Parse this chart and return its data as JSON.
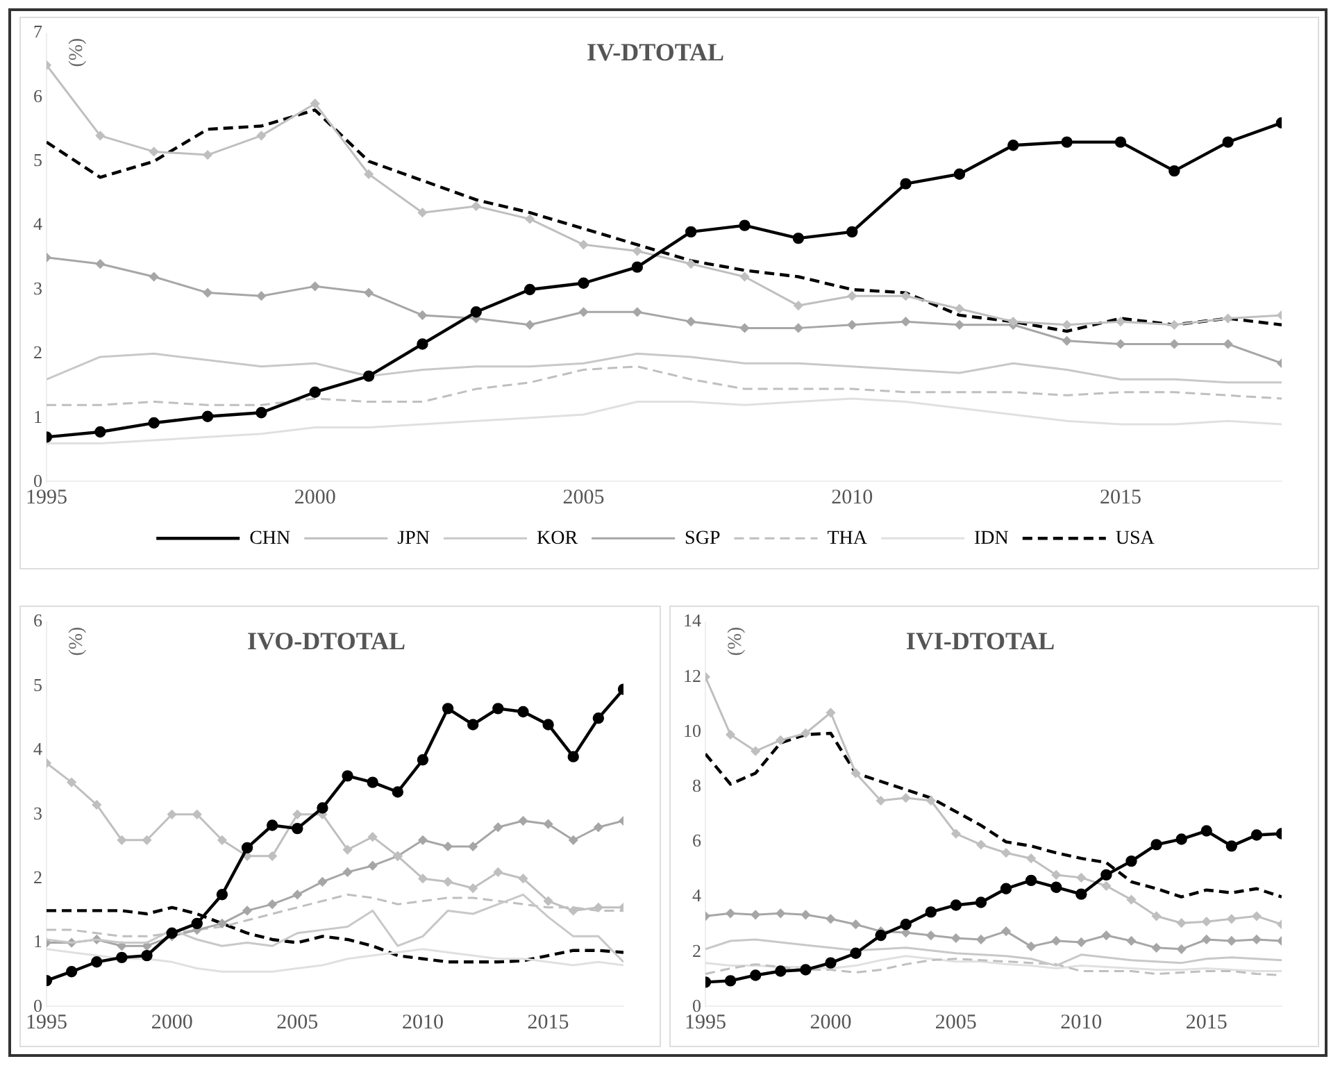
{
  "chart_data": [
    {
      "type": "line",
      "title": "IV-DTOTAL",
      "ylabel": "(%)",
      "legend": "bottom",
      "grid": false,
      "x": [
        1995,
        1996,
        1997,
        1998,
        1999,
        2000,
        2001,
        2002,
        2003,
        2004,
        2005,
        2006,
        2007,
        2008,
        2009,
        2010,
        2011,
        2012,
        2013,
        2014,
        2015,
        2016,
        2017,
        2018
      ],
      "xlim": [
        1995,
        2018
      ],
      "xticks": [
        1995,
        2000,
        2005,
        2010,
        2015
      ],
      "ylim": [
        0,
        7
      ],
      "yticks": [
        0,
        1,
        2,
        3,
        4,
        5,
        6,
        7
      ],
      "series": [
        {
          "name": "CHN",
          "color": "#000000",
          "marker": "circle",
          "line_style": "solid",
          "values": [
            0.7,
            0.78,
            0.92,
            1.02,
            1.08,
            1.4,
            1.65,
            2.15,
            2.65,
            3.0,
            3.1,
            3.35,
            3.9,
            4.0,
            3.8,
            3.9,
            4.65,
            4.8,
            5.25,
            5.3,
            5.3,
            4.85,
            5.3,
            5.6
          ]
        },
        {
          "name": "JPN",
          "color": "#bfbfbf",
          "marker": "diamond",
          "line_style": "solid",
          "values": [
            6.5,
            5.4,
            5.15,
            5.1,
            5.4,
            5.9,
            4.8,
            4.2,
            4.3,
            4.1,
            3.7,
            3.6,
            3.4,
            3.2,
            2.75,
            2.9,
            2.9,
            2.7,
            2.5,
            2.45,
            2.5,
            2.45,
            2.55,
            2.6
          ]
        },
        {
          "name": "KOR",
          "color": "#c8c8c8",
          "marker": "none",
          "line_style": "solid",
          "values": [
            1.6,
            1.95,
            2.0,
            1.9,
            1.8,
            1.85,
            1.65,
            1.75,
            1.8,
            1.8,
            1.85,
            2.0,
            1.95,
            1.85,
            1.85,
            1.8,
            1.75,
            1.7,
            1.85,
            1.75,
            1.6,
            1.6,
            1.55,
            1.55
          ]
        },
        {
          "name": "SGP",
          "color": "#a6a6a6",
          "marker": "diamond",
          "line_style": "solid",
          "values": [
            3.5,
            3.4,
            3.2,
            2.95,
            2.9,
            3.05,
            2.95,
            2.6,
            2.55,
            2.45,
            2.65,
            2.65,
            2.5,
            2.4,
            2.4,
            2.45,
            2.5,
            2.45,
            2.45,
            2.2,
            2.15,
            2.15,
            2.15,
            1.85
          ]
        },
        {
          "name": "THA",
          "color": "#bfbfbf",
          "marker": "none",
          "line_style": "dashed",
          "values": [
            1.2,
            1.2,
            1.25,
            1.2,
            1.2,
            1.3,
            1.25,
            1.25,
            1.45,
            1.55,
            1.75,
            1.8,
            1.6,
            1.45,
            1.45,
            1.45,
            1.4,
            1.4,
            1.4,
            1.35,
            1.4,
            1.4,
            1.35,
            1.3
          ]
        },
        {
          "name": "IDN",
          "color": "#e0e0e0",
          "marker": "none",
          "line_style": "solid",
          "values": [
            0.6,
            0.6,
            0.65,
            0.7,
            0.75,
            0.85,
            0.85,
            0.9,
            0.95,
            1.0,
            1.05,
            1.25,
            1.25,
            1.2,
            1.25,
            1.3,
            1.25,
            1.15,
            1.05,
            0.95,
            0.9,
            0.9,
            0.95,
            0.9
          ]
        },
        {
          "name": "USA",
          "color": "#000000",
          "marker": "none",
          "line_style": "dashed",
          "values": [
            5.3,
            4.75,
            5.0,
            5.5,
            5.55,
            5.8,
            5.0,
            4.7,
            4.4,
            4.2,
            3.95,
            3.7,
            3.45,
            3.3,
            3.2,
            3.0,
            2.95,
            2.6,
            2.5,
            2.35,
            2.55,
            2.45,
            2.55,
            2.45
          ]
        }
      ]
    },
    {
      "type": "line",
      "title": "IVO-DTOTAL",
      "ylabel": "(%)",
      "grid": false,
      "x": [
        1995,
        1996,
        1997,
        1998,
        1999,
        2000,
        2001,
        2002,
        2003,
        2004,
        2005,
        2006,
        2007,
        2008,
        2009,
        2010,
        2011,
        2012,
        2013,
        2014,
        2015,
        2016,
        2017,
        2018
      ],
      "xlim": [
        1995,
        2018
      ],
      "xticks": [
        1995,
        2000,
        2005,
        2010,
        2015
      ],
      "ylim": [
        0,
        6
      ],
      "yticks": [
        0,
        1,
        2,
        3,
        4,
        5,
        6
      ],
      "series": [
        {
          "color": "#000000",
          "marker": "circle",
          "line_style": "solid",
          "values": [
            0.41,
            0.55,
            0.7,
            0.77,
            0.8,
            1.15,
            1.3,
            1.75,
            2.48,
            2.83,
            2.78,
            3.1,
            3.6,
            3.5,
            3.35,
            3.85,
            4.65,
            4.4,
            4.65,
            4.6,
            4.4,
            3.9,
            4.5,
            4.95
          ]
        },
        {
          "color": "#bfbfbf",
          "marker": "diamond",
          "line_style": "solid",
          "values": [
            3.8,
            3.5,
            3.15,
            2.6,
            2.6,
            3.0,
            3.0,
            2.6,
            2.35,
            2.35,
            3.0,
            3.0,
            2.45,
            2.65,
            2.35,
            2.0,
            1.95,
            1.85,
            2.1,
            2.0,
            1.65,
            1.5,
            1.55,
            1.55
          ]
        },
        {
          "color": "#c8c8c8",
          "marker": "none",
          "line_style": "solid",
          "values": [
            1.05,
            1.0,
            1.05,
            1.0,
            1.0,
            1.2,
            1.05,
            0.95,
            1.0,
            0.95,
            1.15,
            1.2,
            1.25,
            1.5,
            0.95,
            1.1,
            1.5,
            1.45,
            1.6,
            1.75,
            1.4,
            1.1,
            1.1,
            0.7
          ]
        },
        {
          "color": "#a6a6a6",
          "marker": "diamond",
          "line_style": "solid",
          "values": [
            1.0,
            1.0,
            1.05,
            0.95,
            0.95,
            1.1,
            1.2,
            1.3,
            1.5,
            1.6,
            1.75,
            1.95,
            2.1,
            2.2,
            2.35,
            2.6,
            2.5,
            2.5,
            2.8,
            2.9,
            2.85,
            2.6,
            2.8,
            2.9
          ]
        },
        {
          "color": "#bfbfbf",
          "marker": "none",
          "line_style": "dashed",
          "values": [
            1.2,
            1.2,
            1.15,
            1.1,
            1.1,
            1.15,
            1.2,
            1.25,
            1.35,
            1.45,
            1.55,
            1.65,
            1.75,
            1.7,
            1.6,
            1.65,
            1.7,
            1.7,
            1.65,
            1.6,
            1.55,
            1.55,
            1.5,
            1.5
          ]
        },
        {
          "color": "#e0e0e0",
          "marker": "none",
          "line_style": "solid",
          "values": [
            0.9,
            0.85,
            0.8,
            0.75,
            0.75,
            0.7,
            0.6,
            0.55,
            0.55,
            0.55,
            0.6,
            0.65,
            0.75,
            0.8,
            0.85,
            0.9,
            0.85,
            0.8,
            0.75,
            0.75,
            0.7,
            0.65,
            0.7,
            0.65
          ]
        },
        {
          "color": "#000000",
          "marker": "none",
          "line_style": "dashed",
          "values": [
            1.5,
            1.5,
            1.5,
            1.5,
            1.45,
            1.55,
            1.45,
            1.3,
            1.15,
            1.05,
            1.0,
            1.1,
            1.05,
            0.95,
            0.8,
            0.75,
            0.7,
            0.7,
            0.7,
            0.72,
            0.8,
            0.88,
            0.88,
            0.85
          ]
        }
      ]
    },
    {
      "type": "line",
      "title": "IVI-DTOTAL",
      "ylabel": "(%)",
      "grid": false,
      "x": [
        1995,
        1996,
        1997,
        1998,
        1999,
        2000,
        2001,
        2002,
        2003,
        2004,
        2005,
        2006,
        2007,
        2008,
        2009,
        2010,
        2011,
        2012,
        2013,
        2014,
        2015,
        2016,
        2017,
        2018
      ],
      "xlim": [
        1995,
        2018
      ],
      "xticks": [
        1995,
        2000,
        2005,
        2010,
        2015
      ],
      "ylim": [
        0,
        14
      ],
      "yticks": [
        0,
        2,
        4,
        6,
        8,
        10,
        12,
        14
      ],
      "series": [
        {
          "color": "#000000",
          "marker": "circle",
          "line_style": "solid",
          "values": [
            0.9,
            0.95,
            1.15,
            1.3,
            1.35,
            1.6,
            1.95,
            2.6,
            3.0,
            3.45,
            3.7,
            3.8,
            4.3,
            4.6,
            4.35,
            4.1,
            4.8,
            5.3,
            5.9,
            6.1,
            6.4,
            5.85,
            6.25,
            6.3
          ]
        },
        {
          "color": "#bfbfbf",
          "marker": "diamond",
          "line_style": "solid",
          "values": [
            12.0,
            9.9,
            9.3,
            9.7,
            9.95,
            10.7,
            8.5,
            7.5,
            7.6,
            7.5,
            6.3,
            5.9,
            5.6,
            5.4,
            4.8,
            4.7,
            4.4,
            3.9,
            3.3,
            3.05,
            3.1,
            3.2,
            3.3,
            3.0
          ]
        },
        {
          "color": "#c8c8c8",
          "marker": "none",
          "line_style": "solid",
          "values": [
            2.1,
            2.4,
            2.45,
            2.35,
            2.25,
            2.15,
            2.05,
            2.1,
            2.15,
            2.05,
            1.95,
            1.9,
            1.85,
            1.75,
            1.5,
            1.9,
            1.8,
            1.7,
            1.65,
            1.6,
            1.75,
            1.8,
            1.75,
            1.7
          ]
        },
        {
          "color": "#a6a6a6",
          "marker": "diamond",
          "line_style": "solid",
          "values": [
            3.3,
            3.4,
            3.35,
            3.4,
            3.35,
            3.2,
            3.0,
            2.75,
            2.7,
            2.6,
            2.5,
            2.45,
            2.75,
            2.2,
            2.4,
            2.35,
            2.6,
            2.4,
            2.15,
            2.1,
            2.45,
            2.4,
            2.45,
            2.4
          ]
        },
        {
          "color": "#bfbfbf",
          "marker": "none",
          "line_style": "dashed",
          "values": [
            1.2,
            1.4,
            1.55,
            1.45,
            1.35,
            1.35,
            1.25,
            1.35,
            1.55,
            1.7,
            1.75,
            1.7,
            1.65,
            1.6,
            1.55,
            1.3,
            1.3,
            1.3,
            1.2,
            1.25,
            1.3,
            1.3,
            1.2,
            1.15
          ]
        },
        {
          "color": "#e0e0e0",
          "marker": "none",
          "line_style": "solid",
          "values": [
            1.6,
            1.5,
            1.5,
            1.45,
            1.45,
            1.4,
            1.5,
            1.7,
            1.85,
            1.75,
            1.65,
            1.65,
            1.55,
            1.5,
            1.4,
            1.5,
            1.45,
            1.4,
            1.35,
            1.35,
            1.4,
            1.35,
            1.3,
            1.3
          ]
        },
        {
          "color": "#000000",
          "marker": "none",
          "line_style": "dashed",
          "values": [
            9.2,
            8.1,
            8.5,
            9.6,
            9.9,
            9.95,
            8.5,
            8.2,
            7.9,
            7.6,
            7.1,
            6.6,
            6.0,
            5.85,
            5.6,
            5.4,
            5.25,
            4.55,
            4.3,
            4.0,
            4.25,
            4.15,
            4.3,
            4.0
          ]
        }
      ]
    }
  ]
}
